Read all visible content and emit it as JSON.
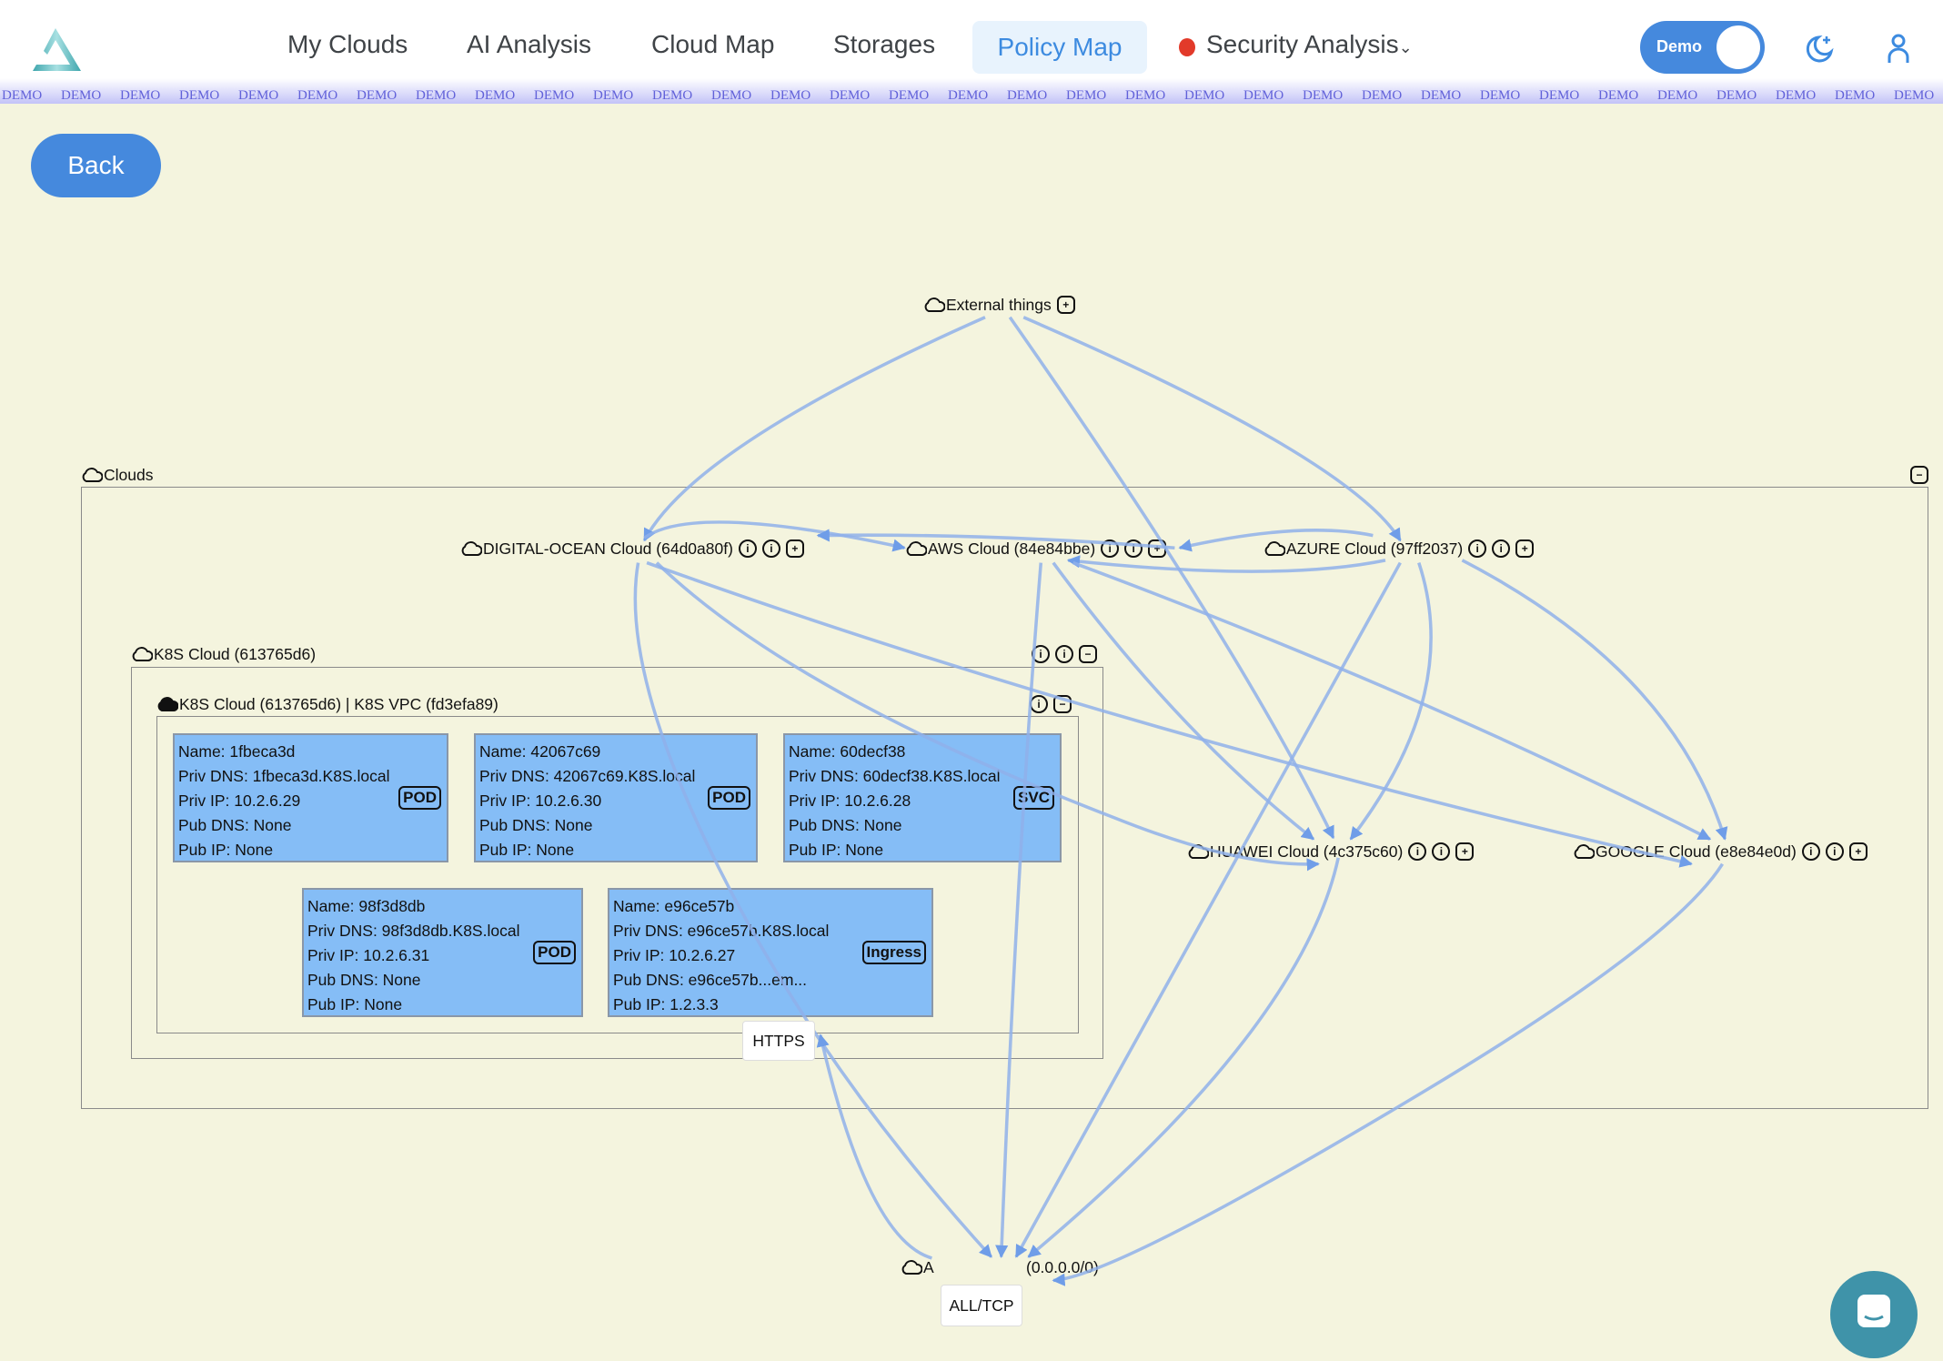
{
  "nav": {
    "items": [
      "My Clouds",
      "AI Analysis",
      "Cloud Map",
      "Storages",
      "Policy Map",
      "Security Analysis"
    ],
    "active": "Policy Map",
    "security_status_color": "#e23a2a"
  },
  "demo_toggle": {
    "label": "Demo",
    "on": true
  },
  "watermark": "DEMO",
  "back_label": "Back",
  "icons": {
    "logo": "triangle-logo",
    "theme": "moon-stars-icon",
    "user": "user-icon",
    "chat": "chat-icon"
  },
  "diagram": {
    "external": "External things",
    "clouds": "Clouds",
    "do": "DIGITAL-OCEAN Cloud (64d0a80f)",
    "aws": "AWS Cloud (84e84bbe)",
    "azure": "AZURE Cloud (97ff2037)",
    "huawei": "HUAWEI Cloud (4c375c60)",
    "google": "GOOGLE Cloud (e8e84e0d)",
    "k8s": "K8S Cloud (613765d6)",
    "vpc": "K8S Cloud (613765d6) | K8S VPC (fd3efa89)",
    "any_prefix": "A",
    "any_suffix": "(0.0.0.0/0)",
    "edge_https": "HTTPS",
    "edge_alltcp": "ALL/TCP",
    "cards": [
      {
        "lines": [
          "Name: 1fbeca3d",
          "Priv DNS: 1fbeca3d.K8S.local",
          "Priv IP: 10.2.6.29",
          "Pub DNS: None",
          "Pub IP: None"
        ],
        "tag": "POD"
      },
      {
        "lines": [
          "Name: 42067c69",
          "Priv DNS: 42067c69.K8S.local",
          "Priv IP: 10.2.6.30",
          "Pub DNS: None",
          "Pub IP: None"
        ],
        "tag": "POD"
      },
      {
        "lines": [
          "Name: 60decf38",
          "Priv DNS: 60decf38.K8S.local",
          "Priv IP: 10.2.6.28",
          "Pub DNS: None",
          "Pub IP: None"
        ],
        "tag": "SVC"
      },
      {
        "lines": [
          "Name: 98f3d8db",
          "Priv DNS: 98f3d8db.K8S.local",
          "Priv IP: 10.2.6.31",
          "Pub DNS: None",
          "Pub IP: None"
        ],
        "tag": "POD"
      },
      {
        "lines": [
          "Name: e96ce57b",
          "Priv DNS: e96ce57b.K8S.local",
          "Priv IP: 10.2.6.27",
          "Pub DNS: e96ce57b...em...",
          "Pub IP: 1.2.3.3"
        ],
        "tag": "Ingress"
      }
    ]
  }
}
